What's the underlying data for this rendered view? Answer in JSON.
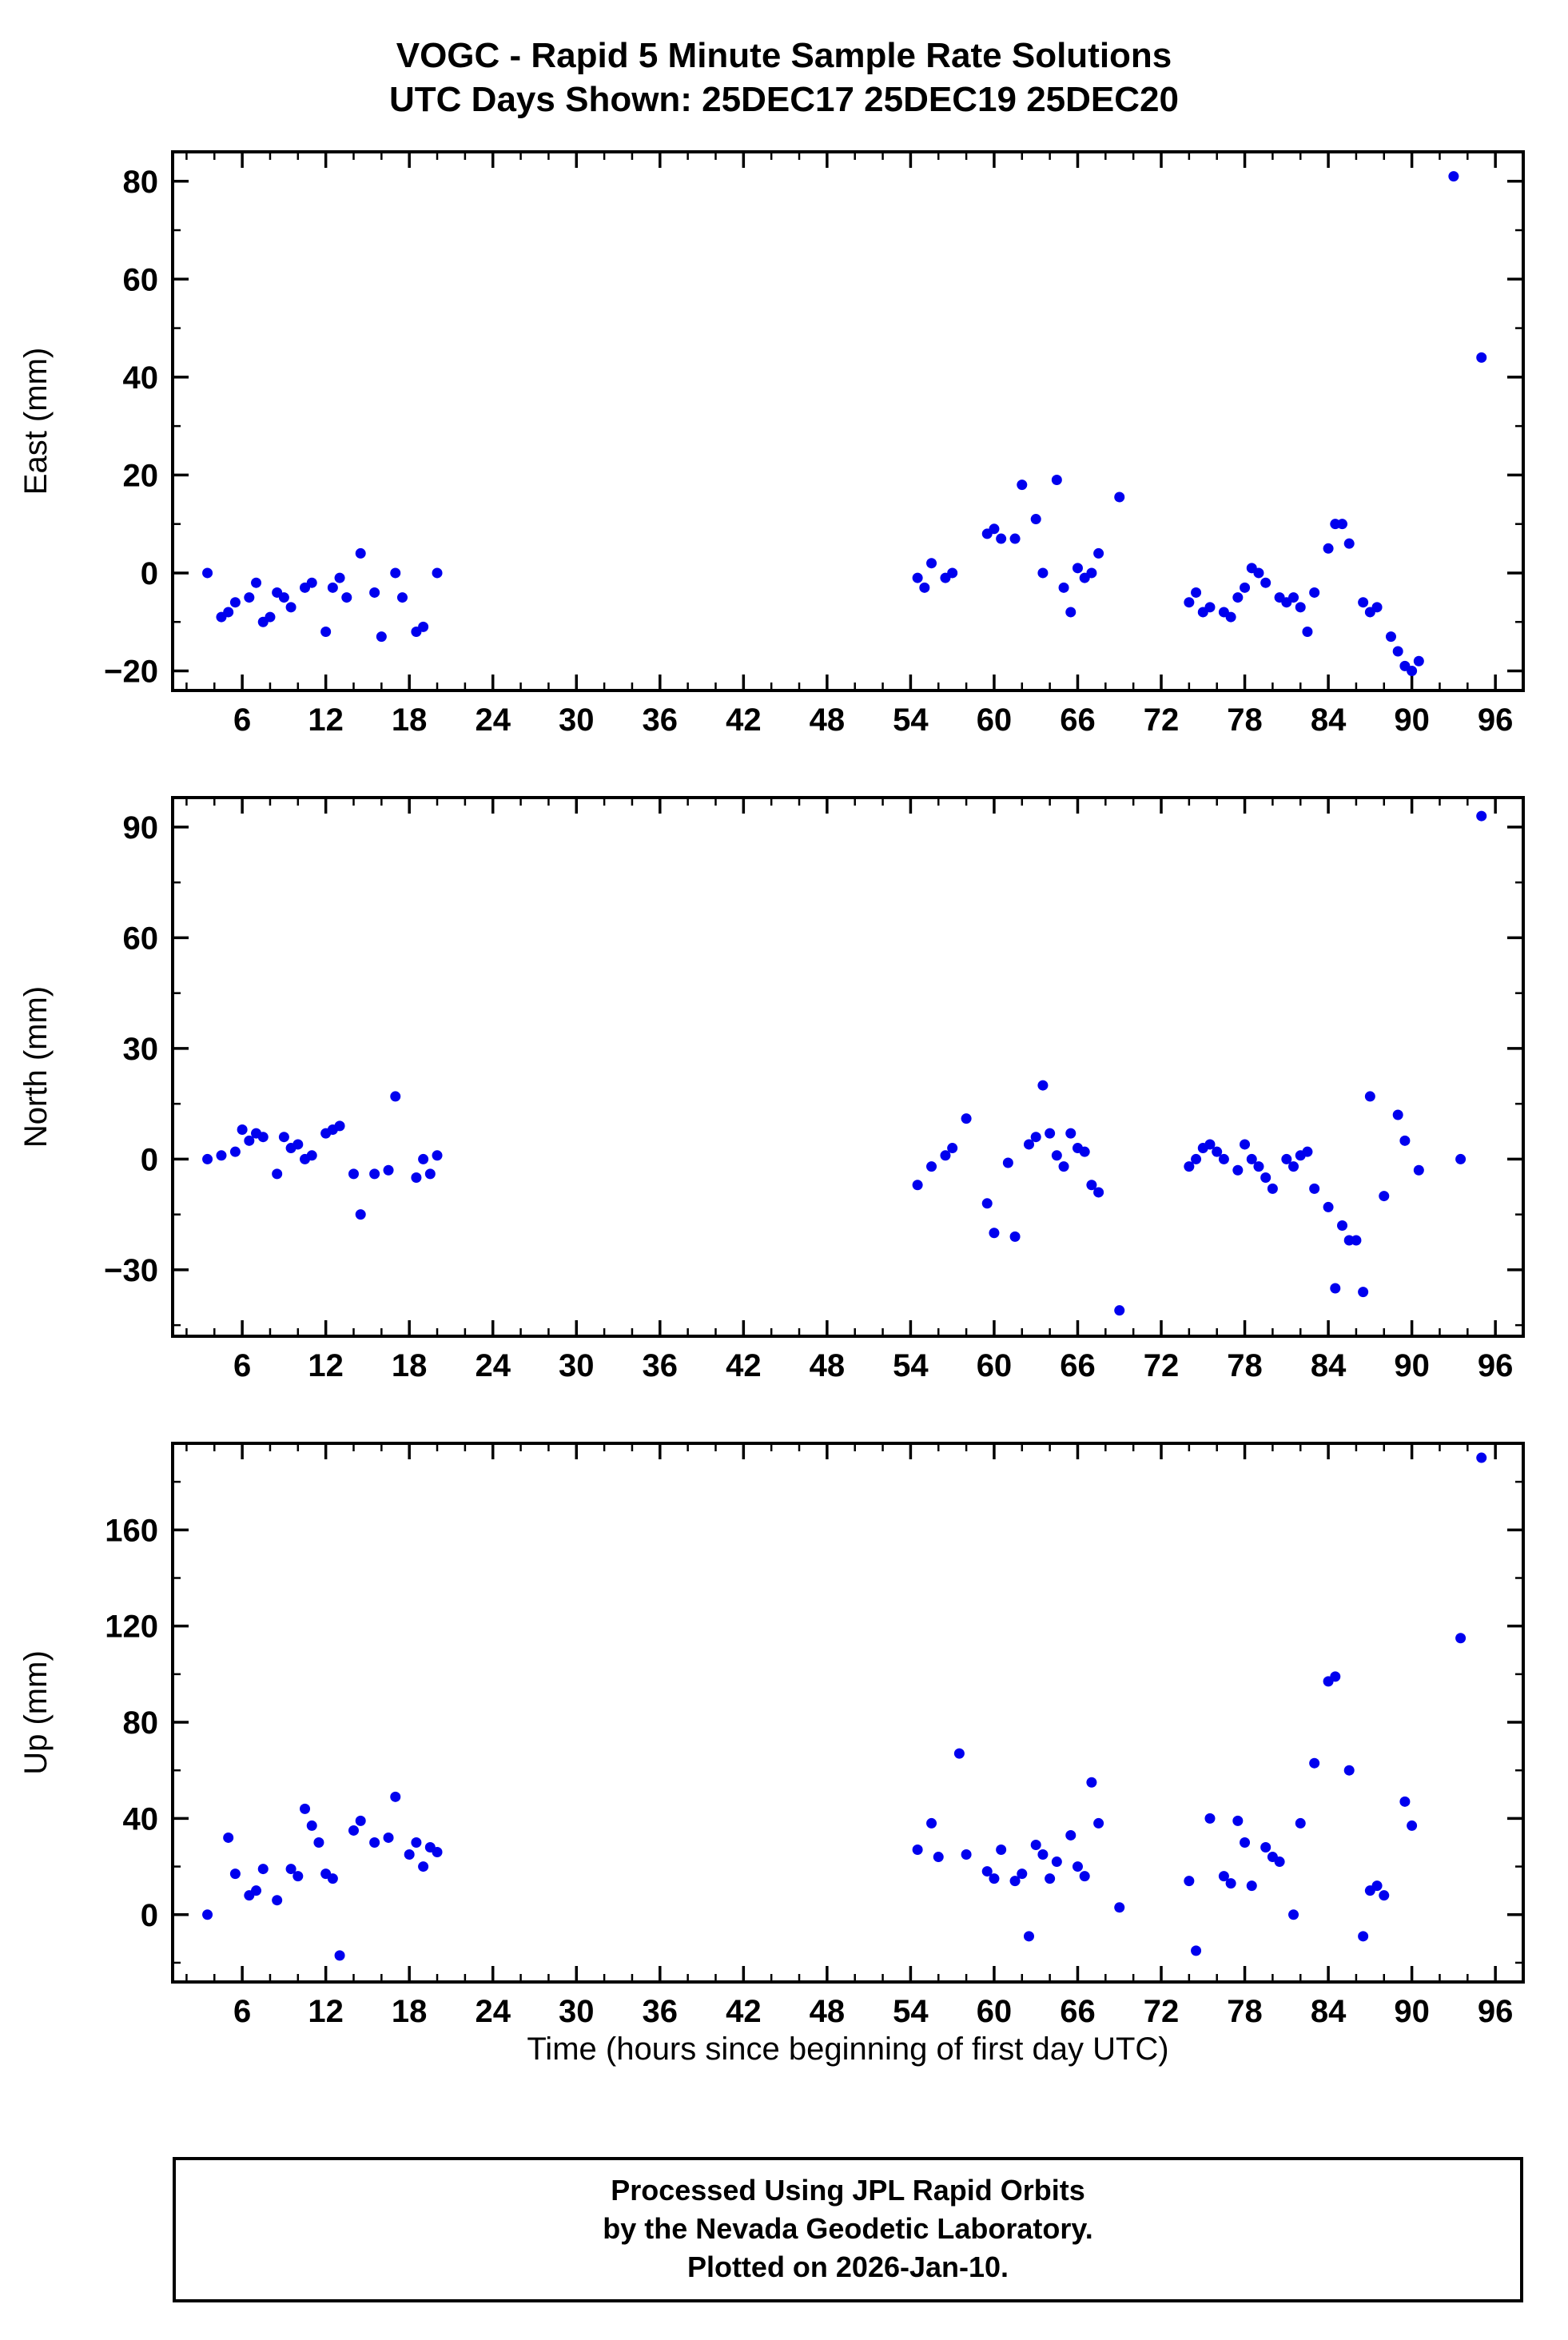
{
  "chart_data": {
    "type": "scatter",
    "title": "VOGC - Rapid 5 Minute Sample Rate Solutions",
    "subtitle": "UTC Days Shown:  25DEC17 25DEC19 25DEC20",
    "xlabel": "Time (hours since beginning of first day UTC)",
    "xlim": [
      1,
      98
    ],
    "x_ticks": [
      6,
      12,
      18,
      24,
      30,
      36,
      42,
      48,
      54,
      60,
      66,
      72,
      78,
      84,
      90,
      96
    ],
    "x_minor_step": 2,
    "marker_color": "#0000ee",
    "grid": false,
    "legend": "none",
    "panels": [
      {
        "name": "East",
        "ylabel": "East (mm)",
        "ylim": [
          -24,
          86
        ],
        "yticks": [
          -20,
          0,
          20,
          40,
          60,
          80
        ],
        "y_minor_step": 10,
        "points": [
          [
            3.5,
            0
          ],
          [
            4.5,
            -9
          ],
          [
            5,
            -8
          ],
          [
            5.5,
            -6
          ],
          [
            6.5,
            -5
          ],
          [
            7,
            -2
          ],
          [
            7.5,
            -10
          ],
          [
            8,
            -9
          ],
          [
            8.5,
            -4
          ],
          [
            9,
            -5
          ],
          [
            9.5,
            -7
          ],
          [
            10.5,
            -3
          ],
          [
            11,
            -2
          ],
          [
            12,
            -12
          ],
          [
            12.5,
            -3
          ],
          [
            13,
            -1
          ],
          [
            13.5,
            -5
          ],
          [
            14.5,
            4
          ],
          [
            15.5,
            -4
          ],
          [
            16,
            -13
          ],
          [
            17,
            0
          ],
          [
            17.5,
            -5
          ],
          [
            18.5,
            -12
          ],
          [
            19,
            -11
          ],
          [
            20,
            0
          ],
          [
            54.5,
            -1
          ],
          [
            55,
            -3
          ],
          [
            55.5,
            2
          ],
          [
            56.5,
            -1
          ],
          [
            57,
            0
          ],
          [
            59.5,
            8
          ],
          [
            60,
            9
          ],
          [
            60.5,
            7
          ],
          [
            61.5,
            7
          ],
          [
            62,
            18
          ],
          [
            63,
            11
          ],
          [
            63.5,
            0
          ],
          [
            64.5,
            19
          ],
          [
            65,
            -3
          ],
          [
            65.5,
            -8
          ],
          [
            66,
            1
          ],
          [
            66.5,
            -1
          ],
          [
            67,
            0
          ],
          [
            67.5,
            4
          ],
          [
            69,
            15.5
          ],
          [
            74,
            -6
          ],
          [
            74.5,
            -4
          ],
          [
            75,
            -8
          ],
          [
            75.5,
            -7
          ],
          [
            76.5,
            -8
          ],
          [
            77,
            -9
          ],
          [
            77.5,
            -5
          ],
          [
            78,
            -3
          ],
          [
            78.5,
            1
          ],
          [
            79,
            0
          ],
          [
            79.5,
            -2
          ],
          [
            80.5,
            -5
          ],
          [
            81,
            -6
          ],
          [
            81.5,
            -5
          ],
          [
            82,
            -7
          ],
          [
            82.5,
            -12
          ],
          [
            83,
            -4
          ],
          [
            84,
            5
          ],
          [
            84.5,
            10
          ],
          [
            85,
            10
          ],
          [
            85.5,
            6
          ],
          [
            86.5,
            -6
          ],
          [
            87,
            -8
          ],
          [
            87.5,
            -7
          ],
          [
            88.5,
            -13
          ],
          [
            89,
            -16
          ],
          [
            89.5,
            -19
          ],
          [
            90,
            -20
          ],
          [
            90.5,
            -18
          ],
          [
            93,
            81
          ],
          [
            95,
            44
          ]
        ]
      },
      {
        "name": "North",
        "ylabel": "North (mm)",
        "ylim": [
          -48,
          98
        ],
        "yticks": [
          -30,
          0,
          30,
          60,
          90
        ],
        "y_minor_step": 15,
        "points": [
          [
            3.5,
            0
          ],
          [
            4.5,
            1
          ],
          [
            5.5,
            2
          ],
          [
            6,
            8
          ],
          [
            6.5,
            5
          ],
          [
            7,
            7
          ],
          [
            7.5,
            6
          ],
          [
            8.5,
            -4
          ],
          [
            9,
            6
          ],
          [
            9.5,
            3
          ],
          [
            10,
            4
          ],
          [
            10.5,
            0
          ],
          [
            11,
            1
          ],
          [
            12,
            7
          ],
          [
            12.5,
            8
          ],
          [
            13,
            9
          ],
          [
            14,
            -4
          ],
          [
            14.5,
            -15
          ],
          [
            15.5,
            -4
          ],
          [
            16.5,
            -3
          ],
          [
            17,
            17
          ],
          [
            18.5,
            -5
          ],
          [
            19,
            0
          ],
          [
            19.5,
            -4
          ],
          [
            20,
            1
          ],
          [
            54.5,
            -7
          ],
          [
            55.5,
            -2
          ],
          [
            56.5,
            1
          ],
          [
            57,
            3
          ],
          [
            58,
            11
          ],
          [
            59.5,
            -12
          ],
          [
            60,
            -20
          ],
          [
            61,
            -1
          ],
          [
            61.5,
            -21
          ],
          [
            62.5,
            4
          ],
          [
            63,
            6
          ],
          [
            63.5,
            20
          ],
          [
            64,
            7
          ],
          [
            64.5,
            1
          ],
          [
            65,
            -2
          ],
          [
            65.5,
            7
          ],
          [
            66,
            3
          ],
          [
            66.5,
            2
          ],
          [
            67,
            -7
          ],
          [
            67.5,
            -9
          ],
          [
            69,
            -41
          ],
          [
            74,
            -2
          ],
          [
            74.5,
            0
          ],
          [
            75,
            3
          ],
          [
            75.5,
            4
          ],
          [
            76,
            2
          ],
          [
            76.5,
            0
          ],
          [
            77.5,
            -3
          ],
          [
            78,
            4
          ],
          [
            78.5,
            0
          ],
          [
            79,
            -2
          ],
          [
            79.5,
            -5
          ],
          [
            80,
            -8
          ],
          [
            81,
            0
          ],
          [
            81.5,
            -2
          ],
          [
            82,
            1
          ],
          [
            82.5,
            2
          ],
          [
            83,
            -8
          ],
          [
            84,
            -13
          ],
          [
            84.5,
            -35
          ],
          [
            85,
            -18
          ],
          [
            85.5,
            -22
          ],
          [
            86,
            -22
          ],
          [
            86.5,
            -36
          ],
          [
            87,
            17
          ],
          [
            88,
            -10
          ],
          [
            89,
            12
          ],
          [
            89.5,
            5
          ],
          [
            90.5,
            -3
          ],
          [
            93.5,
            0
          ],
          [
            95,
            93
          ]
        ]
      },
      {
        "name": "Up",
        "ylabel": "Up (mm)",
        "ylim": [
          -28,
          196
        ],
        "yticks": [
          0,
          40,
          80,
          120,
          160
        ],
        "y_minor_step": 20,
        "points": [
          [
            3.5,
            0
          ],
          [
            5,
            32
          ],
          [
            5.5,
            17
          ],
          [
            6.5,
            8
          ],
          [
            7,
            10
          ],
          [
            7.5,
            19
          ],
          [
            8.5,
            6
          ],
          [
            9.5,
            19
          ],
          [
            10,
            16
          ],
          [
            10.5,
            44
          ],
          [
            11,
            37
          ],
          [
            11.5,
            30
          ],
          [
            12,
            17
          ],
          [
            12.5,
            15
          ],
          [
            13,
            -17
          ],
          [
            14,
            35
          ],
          [
            14.5,
            39
          ],
          [
            15.5,
            30
          ],
          [
            16.5,
            32
          ],
          [
            17,
            49
          ],
          [
            18,
            25
          ],
          [
            18.5,
            30
          ],
          [
            19,
            20
          ],
          [
            19.5,
            28
          ],
          [
            20,
            26
          ],
          [
            54.5,
            27
          ],
          [
            55.5,
            38
          ],
          [
            56,
            24
          ],
          [
            57.5,
            67
          ],
          [
            58,
            25
          ],
          [
            59.5,
            18
          ],
          [
            60,
            15
          ],
          [
            60.5,
            27
          ],
          [
            61.5,
            14
          ],
          [
            62,
            17
          ],
          [
            62.5,
            -9
          ],
          [
            63,
            29
          ],
          [
            63.5,
            25
          ],
          [
            64,
            15
          ],
          [
            64.5,
            22
          ],
          [
            65.5,
            33
          ],
          [
            66,
            20
          ],
          [
            66.5,
            16
          ],
          [
            67,
            55
          ],
          [
            67.5,
            38
          ],
          [
            69,
            3
          ],
          [
            74,
            14
          ],
          [
            74.5,
            -15
          ],
          [
            75.5,
            40
          ],
          [
            76.5,
            16
          ],
          [
            77,
            13
          ],
          [
            77.5,
            39
          ],
          [
            78,
            30
          ],
          [
            78.5,
            12
          ],
          [
            79.5,
            28
          ],
          [
            80,
            24
          ],
          [
            80.5,
            22
          ],
          [
            81.5,
            0
          ],
          [
            82,
            38
          ],
          [
            83,
            63
          ],
          [
            84,
            97
          ],
          [
            84.5,
            99
          ],
          [
            85.5,
            60
          ],
          [
            86.5,
            -9
          ],
          [
            87,
            10
          ],
          [
            87.5,
            12
          ],
          [
            88,
            8
          ],
          [
            89.5,
            47
          ],
          [
            90,
            37
          ],
          [
            93.5,
            115
          ],
          [
            95,
            190
          ]
        ]
      }
    ]
  },
  "footer": {
    "lines": [
      "Processed Using JPL Rapid Orbits",
      "by the Nevada Geodetic Laboratory.",
      "Plotted on 2026-Jan-10."
    ]
  }
}
